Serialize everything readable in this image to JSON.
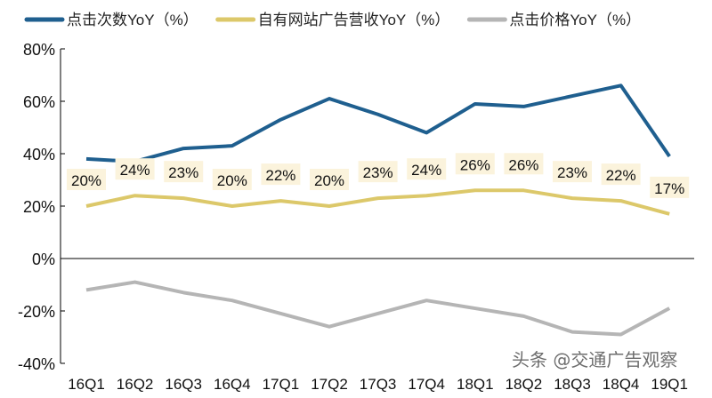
{
  "chart_data": {
    "type": "line",
    "categories": [
      "16Q1",
      "16Q2",
      "16Q3",
      "16Q4",
      "17Q1",
      "17Q2",
      "17Q3",
      "17Q4",
      "18Q1",
      "18Q2",
      "18Q3",
      "18Q4",
      "19Q1"
    ],
    "series": [
      {
        "name": "点击次数YoY（%）",
        "color": "#1f5f8f",
        "values": [
          38,
          37,
          42,
          43,
          53,
          61,
          55,
          48,
          59,
          58,
          62,
          66,
          39
        ]
      },
      {
        "name": "自有网站广告营收YoY（%）",
        "color": "#dcc86a",
        "values": [
          20,
          24,
          23,
          20,
          22,
          20,
          23,
          24,
          26,
          26,
          23,
          22,
          17
        ],
        "data_labels": [
          "20%",
          "24%",
          "23%",
          "20%",
          "22%",
          "20%",
          "23%",
          "24%",
          "26%",
          "26%",
          "23%",
          "22%",
          "17%"
        ]
      },
      {
        "name": "点击价格YoY（%）",
        "color": "#b5b5b5",
        "values": [
          -12,
          -9,
          -13,
          -16,
          -21,
          -26,
          -21,
          -16,
          -19,
          -22,
          -28,
          -29,
          -19
        ]
      }
    ],
    "y_ticks": [
      "80%",
      "60%",
      "40%",
      "20%",
      "0%",
      "-20%",
      "-40%"
    ],
    "ylim": [
      -40,
      80
    ],
    "grid": false,
    "legend": "top",
    "label_box_color": "#fbf3dc"
  },
  "watermark": "头条 @交通广告观察"
}
